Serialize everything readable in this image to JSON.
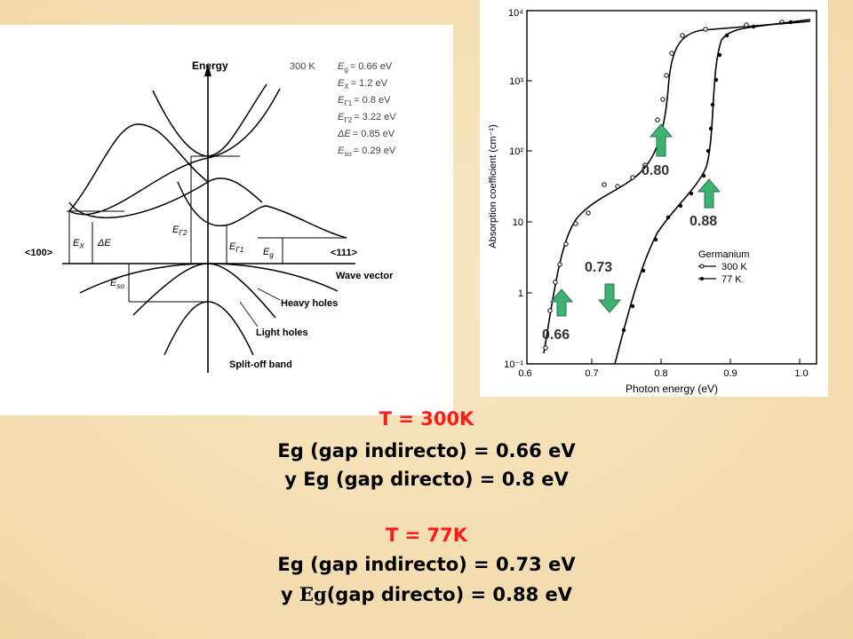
{
  "band_diagram": {
    "y_axis_label": "Energy",
    "temperature": "300 K",
    "params": [
      {
        "sym": "E",
        "sub": "g",
        "value": "= 0.66 eV"
      },
      {
        "sym": "E",
        "sub": "X",
        "value": "= 1.2 eV"
      },
      {
        "sym": "E",
        "sub": "Γ1",
        "value": "= 0.8 eV"
      },
      {
        "sym": "E",
        "sub": "Γ2",
        "value": "= 3.22 eV"
      },
      {
        "sym": "ΔE",
        "sub": "",
        "value": "= 0.85 eV"
      },
      {
        "sym": "E",
        "sub": "so",
        "value": "= 0.29 eV"
      }
    ],
    "left_dir": "<100>",
    "right_dir": "<111>",
    "x_axis_label": "Wave vector",
    "labels": {
      "ex": "E",
      "ex_sub": "X",
      "de": "ΔE",
      "eg2": "E",
      "eg2_sub": "Γ2",
      "eg1": "E",
      "eg1_sub": "Γ1",
      "eg": "E",
      "eg_sub": "g",
      "eso": "E",
      "eso_sub": "so"
    },
    "heavy_holes": "Heavy holes",
    "light_holes": "Light holes",
    "split_off": "Split-off band"
  },
  "absorption_plot": {
    "x_label": "Photon energy (eV)",
    "y_label": "Absorption coefficient (cm⁻¹)",
    "x_ticks": [
      "0.6",
      "0.7",
      "0.8",
      "0.9",
      "1.0"
    ],
    "y_ticks": [
      "10⁻¹",
      "1",
      "10",
      "10²",
      "10³",
      "10⁴"
    ],
    "legend_title": "Germanium",
    "legend": [
      "300 K",
      "77 K"
    ],
    "markers": [
      "0.66",
      "0.73",
      "0.80",
      "0.88"
    ]
  },
  "captions": {
    "t300": "T = 300K",
    "line1": "Eg (gap indirecto) = 0.66 eV",
    "line2": "y Eg (gap directo) = 0.8 eV",
    "t77": "T = 77K",
    "line3": "Eg (gap indirecto) = 0.73 eV",
    "line4_a": "y ",
    "line4_b": "Eg",
    "line4_c": "(gap directo) = 0.88 eV"
  },
  "colors": {
    "background": "#f6e2b8",
    "arrow": "#3cb371",
    "title_red": "#ff1a1a"
  }
}
